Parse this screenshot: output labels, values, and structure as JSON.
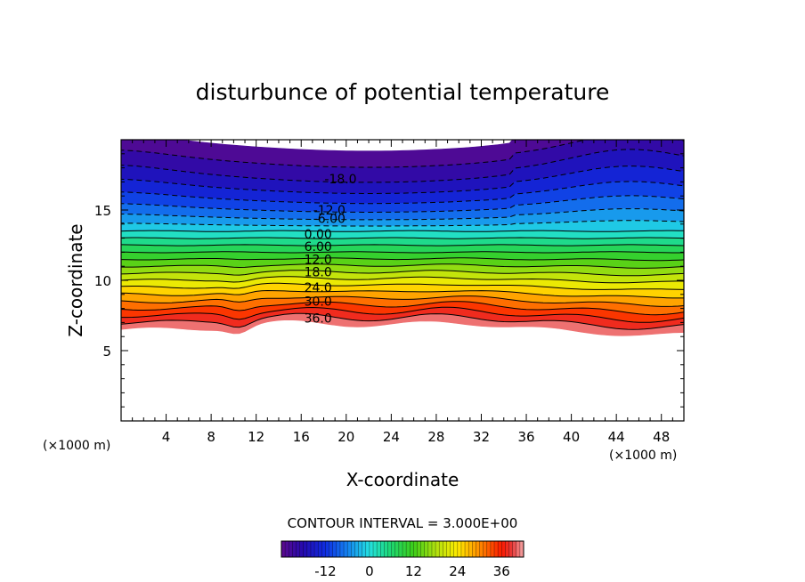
{
  "chart_data": {
    "type": "contour",
    "title": "disturbunce of potential temperature",
    "xlabel": "X-coordinate",
    "ylabel": "Z-coordinate",
    "x_unit": "(×1000 m)",
    "z_unit": "(×1000 m)",
    "xlim": [
      0,
      50
    ],
    "ylim": [
      0,
      20
    ],
    "x_ticks": [
      4,
      8,
      12,
      16,
      20,
      24,
      28,
      32,
      36,
      40,
      44,
      48
    ],
    "y_ticks": [
      5,
      10,
      15
    ],
    "contour_interval_text": "CONTOUR INTERVAL = 3.000E+00",
    "contour_levels": [
      -24,
      -21,
      -18,
      -15,
      -12,
      -9,
      -6,
      -3,
      0,
      3,
      6,
      9,
      12,
      15,
      18,
      21,
      24,
      27,
      30,
      33,
      36,
      39,
      42
    ],
    "negative_contours_dashed": true,
    "contour_labels": [
      {
        "text": "-18.0",
        "value": -18,
        "x": 19.5,
        "z": 17.2
      },
      {
        "text": "-12.0",
        "value": -12,
        "x": 18.5,
        "z": 15.0
      },
      {
        "text": "-6.00",
        "value": -6,
        "x": 18.5,
        "z": 14.4
      },
      {
        "text": "0.00",
        "value": 0,
        "x": 17.5,
        "z": 13.3
      },
      {
        "text": "6.00",
        "value": 6,
        "x": 17.5,
        "z": 12.4
      },
      {
        "text": "12.0",
        "value": 12,
        "x": 17.5,
        "z": 11.5
      },
      {
        "text": "18.0",
        "value": 18,
        "x": 17.5,
        "z": 10.6
      },
      {
        "text": "24.0",
        "value": 24,
        "x": 17.5,
        "z": 9.5
      },
      {
        "text": "30.0",
        "value": 30,
        "x": 17.5,
        "z": 8.5
      },
      {
        "text": "36.0",
        "value": 36,
        "x": 17.5,
        "z": 7.3
      }
    ],
    "colorbar": {
      "min": -24,
      "max": 42,
      "tick_values": [
        -12,
        0,
        12,
        24,
        36
      ],
      "tick_labels": [
        "-12",
        "0",
        "12",
        "24",
        "36"
      ]
    },
    "colors": {
      "low": "#5a0a8c",
      "mid": "#1fe0a0",
      "high": "#ff1a00",
      "top": "#f4a0a0"
    }
  }
}
